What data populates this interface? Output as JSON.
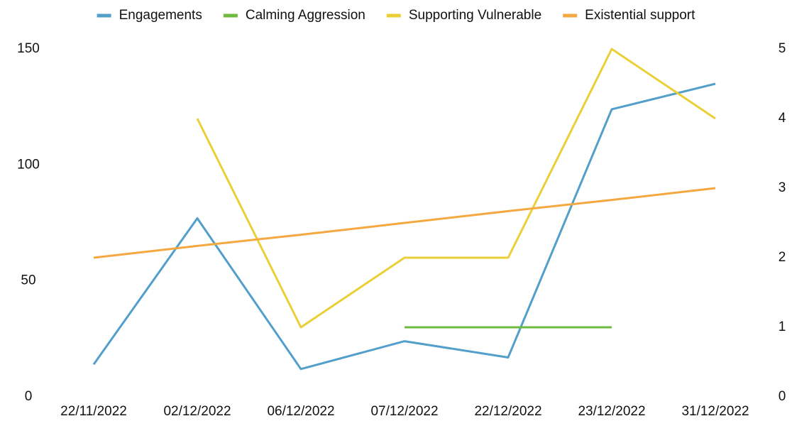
{
  "chart_data": {
    "type": "line",
    "categories": [
      "22/11/2022",
      "02/12/2022",
      "06/12/2022",
      "07/12/2022",
      "22/12/2022",
      "23/12/2022",
      "31/12/2022"
    ],
    "series": [
      {
        "name": "Engagements",
        "color": "#519fca",
        "values": [
          14,
          77,
          12,
          24,
          17,
          124,
          135
        ]
      },
      {
        "name": "Calming Aggression",
        "color": "#6dbb3f",
        "axis": "y2",
        "values": [
          null,
          null,
          null,
          1,
          1,
          1,
          null
        ]
      },
      {
        "name": "Supporting Vulnerable",
        "color": "#ebcf37",
        "axis": "y2",
        "values": [
          null,
          4,
          1,
          2,
          2,
          5,
          4
        ]
      },
      {
        "name": "Existential support",
        "color": "#f5a840",
        "axis": "y2",
        "values": [
          2,
          2.17,
          2.33,
          2.5,
          2.67,
          2.83,
          3
        ]
      }
    ],
    "ylim": [
      0,
      150
    ],
    "yticks": [
      0,
      50,
      100,
      150
    ],
    "y2lim": [
      0,
      5
    ],
    "y2ticks": [
      0,
      1,
      2,
      3,
      4,
      5
    ],
    "grid": false,
    "legend": "top"
  }
}
